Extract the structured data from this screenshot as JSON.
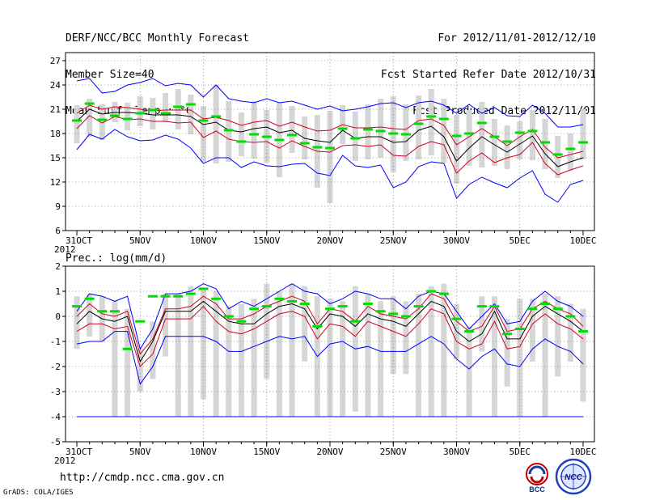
{
  "header": {
    "left_lines": [
      "DERF/NCC/BCC Monthly Forecast",
      "Member Size=40",
      "Mean Surf. Temp.: °C"
    ],
    "right_lines": [
      "For 2012/11/01-2012/12/10",
      "Fcst Started Refer Date 2012/10/31",
      "Fcst Produced Date 2012/11/01"
    ]
  },
  "footer": {
    "url": "http://cmdp.ncc.cma.gov.cn",
    "grads": "GrADS: COLA/IGES",
    "logo_left_label": "BCC",
    "logo_right_label": "NCC"
  },
  "colors": {
    "envelope": "#0000ff",
    "spread": "#d00020",
    "mean": "#000000",
    "observed": "#00dd00",
    "box": "#d6d6d6",
    "grid": "#808080"
  },
  "chart_data": [
    {
      "type": "line",
      "title": "",
      "ylabel": "",
      "ylim": [
        6,
        28
      ],
      "yticks": [
        6,
        9,
        12,
        15,
        18,
        21,
        24,
        27
      ],
      "day_count": 41,
      "xtick_days": [
        0,
        5,
        10,
        15,
        20,
        25,
        30,
        35,
        40
      ],
      "xtick_labels": [
        "31OCT",
        "5NOV",
        "10NOV",
        "15NOV",
        "20NOV",
        "25NOV",
        "30NOV",
        "5DEC",
        "10DEC"
      ],
      "xyear": "2012",
      "series": [
        {
          "name": "max",
          "values": [
            24.5,
            24.8,
            23.0,
            23.2,
            24.0,
            24.3,
            24.8,
            23.9,
            24.2,
            24.0,
            22.5,
            24.0,
            22.3,
            22.0,
            21.8,
            22.3,
            21.8,
            22.0,
            21.5,
            21.0,
            21.4,
            20.8,
            21.0,
            21.3,
            21.7,
            21.8,
            21.2,
            21.8,
            22.0,
            21.5,
            20.5,
            21.6,
            20.5,
            21.2,
            20.2,
            20.1,
            21.5,
            20.5,
            18.8,
            18.8,
            19.1
          ]
        },
        {
          "name": "upper",
          "values": [
            20.5,
            21.5,
            21.0,
            21.3,
            21.2,
            21.0,
            20.8,
            20.9,
            20.9,
            20.9,
            19.8,
            20.0,
            19.6,
            19.0,
            19.4,
            19.6,
            18.9,
            19.4,
            18.8,
            18.3,
            18.4,
            19.1,
            18.7,
            18.7,
            18.8,
            18.6,
            18.5,
            19.6,
            19.8,
            19.0,
            16.6,
            17.6,
            18.6,
            17.6,
            16.5,
            17.6,
            18.5,
            16.3,
            15.0,
            15.4,
            15.8
          ]
        },
        {
          "name": "mean",
          "values": [
            19.5,
            21.0,
            20.4,
            20.6,
            20.6,
            20.5,
            20.3,
            20.3,
            20.3,
            20.1,
            19.1,
            19.4,
            18.4,
            18.2,
            18.6,
            18.8,
            18.1,
            18.4,
            17.4,
            17.1,
            16.9,
            18.4,
            17.4,
            17.6,
            17.6,
            16.9,
            17.0,
            18.4,
            18.9,
            17.6,
            14.6,
            16.2,
            17.6,
            16.6,
            15.7,
            16.7,
            17.7,
            15.5,
            13.9,
            14.5,
            15.0
          ]
        },
        {
          "name": "lower",
          "values": [
            18.6,
            20.2,
            19.3,
            20.1,
            19.7,
            19.8,
            19.5,
            19.5,
            19.3,
            19.4,
            17.5,
            18.3,
            17.3,
            17.0,
            16.9,
            17.0,
            16.2,
            17.1,
            16.4,
            15.8,
            15.7,
            16.5,
            16.6,
            16.4,
            16.6,
            15.3,
            15.2,
            16.4,
            17.0,
            16.6,
            13.1,
            14.6,
            15.6,
            14.4,
            15.0,
            15.4,
            16.9,
            14.3,
            12.9,
            13.5,
            14.0
          ]
        },
        {
          "name": "min",
          "values": [
            16.0,
            17.9,
            17.3,
            18.5,
            17.6,
            17.1,
            17.2,
            17.8,
            17.3,
            16.2,
            14.3,
            15.0,
            15.0,
            13.8,
            14.5,
            14.0,
            13.9,
            14.2,
            14.3,
            13.1,
            12.8,
            15.3,
            14.0,
            13.8,
            14.1,
            11.3,
            12.0,
            13.9,
            14.5,
            14.3,
            10.0,
            11.7,
            12.6,
            11.9,
            11.3,
            12.5,
            13.4,
            10.5,
            9.5,
            11.7,
            12.2
          ]
        },
        {
          "name": "box_top",
          "values": [
            21.5,
            22.3,
            21.6,
            21.9,
            21.8,
            22.6,
            22.4,
            23.0,
            23.5,
            22.8,
            21.4,
            24.0,
            22.0,
            20.6,
            22.0,
            20.9,
            21.8,
            21.4,
            20.1,
            20.3,
            20.8,
            21.5,
            20.7,
            21.6,
            22.3,
            22.6,
            21.6,
            22.7,
            23.5,
            22.3,
            20.3,
            20.9,
            21.9,
            19.8,
            19.0,
            19.5,
            20.9,
            19.8,
            17.7,
            18.0,
            21.0
          ]
        },
        {
          "name": "box_bottom",
          "values": [
            16.8,
            17.6,
            17.2,
            19.4,
            18.4,
            18.9,
            18.5,
            19.4,
            18.5,
            17.9,
            14.5,
            14.3,
            14.5,
            15.2,
            14.9,
            14.4,
            12.6,
            15.6,
            14.8,
            11.3,
            9.4,
            16.7,
            14.6,
            14.8,
            15.0,
            13.2,
            14.6,
            14.8,
            15.3,
            14.4,
            11.8,
            14.0,
            13.8,
            14.0,
            13.6,
            14.8,
            14.7,
            13.6,
            12.5,
            13.4,
            14.8
          ]
        },
        {
          "name": "observed",
          "values": [
            19.6,
            21.7,
            19.7,
            20.2,
            19.8,
            20.5,
            20.9,
            20.5,
            21.3,
            21.6,
            19.6,
            20.1,
            18.4,
            17.0,
            17.9,
            17.6,
            17.2,
            17.8,
            16.8,
            16.3,
            16.2,
            18.6,
            17.4,
            18.5,
            18.3,
            18.0,
            17.9,
            19.2,
            20.1,
            19.8,
            17.7,
            18.0,
            19.3,
            17.6,
            17.0,
            18.1,
            18.3,
            16.9,
            15.4,
            16.1,
            16.9
          ]
        }
      ]
    },
    {
      "type": "line",
      "title": "Prec.: log(mm/d)",
      "ylabel": "",
      "ylim": [
        -5,
        2
      ],
      "yticks": [
        -5,
        -4,
        -3,
        -2,
        -1,
        0,
        1,
        2
      ],
      "day_count": 41,
      "xtick_days": [
        0,
        5,
        10,
        15,
        20,
        25,
        30,
        35,
        40
      ],
      "xtick_labels": [
        "31OCT",
        "5NOV",
        "10NOV",
        "15NOV",
        "20NOV",
        "25NOV",
        "30NOV",
        "5DEC",
        "10DEC"
      ],
      "xyear": "2012",
      "floor_value": -4,
      "series": [
        {
          "name": "max",
          "values": [
            0.2,
            0.9,
            0.8,
            0.6,
            0.8,
            -1.3,
            -0.5,
            0.9,
            0.9,
            1.0,
            1.3,
            1.1,
            0.3,
            0.6,
            0.4,
            0.7,
            1.0,
            1.3,
            1.0,
            0.9,
            0.5,
            0.7,
            1.0,
            0.9,
            0.7,
            0.7,
            0.3,
            0.8,
            1.0,
            0.9,
            0.2,
            -0.5,
            0.0,
            0.5,
            -0.3,
            -0.2,
            0.6,
            1.0,
            0.6,
            0.4,
            0.0
          ]
        },
        {
          "name": "upper",
          "values": [
            0.0,
            0.5,
            0.1,
            0.0,
            0.2,
            -1.5,
            -0.9,
            0.3,
            0.3,
            0.4,
            0.8,
            0.5,
            -0.1,
            -0.1,
            0.1,
            0.4,
            0.6,
            0.8,
            0.6,
            -0.3,
            0.3,
            0.2,
            -0.2,
            0.4,
            0.1,
            0.0,
            -0.1,
            0.3,
            0.9,
            0.7,
            -0.2,
            -0.6,
            -0.4,
            0.4,
            -0.6,
            -0.5,
            0.3,
            0.6,
            0.3,
            0.1,
            -0.4
          ]
        },
        {
          "name": "mean",
          "values": [
            -0.3,
            0.2,
            -0.1,
            -0.2,
            0.0,
            -1.8,
            -1.0,
            0.2,
            0.2,
            0.2,
            0.6,
            0.2,
            -0.2,
            -0.3,
            -0.3,
            0.1,
            0.4,
            0.5,
            0.3,
            -0.5,
            0.1,
            0.0,
            -0.4,
            0.1,
            -0.1,
            -0.2,
            -0.4,
            0.1,
            0.6,
            0.4,
            -0.6,
            -1.0,
            -0.7,
            0.2,
            -0.9,
            -0.9,
            0.0,
            0.4,
            0.1,
            -0.2,
            -0.6
          ]
        },
        {
          "name": "lower",
          "values": [
            -0.6,
            -0.3,
            -0.3,
            -0.5,
            -0.4,
            -2.0,
            -1.5,
            -0.1,
            -0.1,
            -0.1,
            0.4,
            -0.2,
            -0.6,
            -0.7,
            -0.5,
            -0.2,
            0.1,
            0.2,
            0.0,
            -0.9,
            -0.3,
            -0.4,
            -0.8,
            -0.2,
            -0.4,
            -0.6,
            -0.8,
            -0.3,
            0.3,
            0.1,
            -1.0,
            -1.3,
            -1.1,
            -0.2,
            -1.3,
            -1.2,
            -0.3,
            0.1,
            -0.3,
            -0.5,
            -0.9
          ]
        },
        {
          "name": "min",
          "values": [
            -1.1,
            -1.0,
            -1.0,
            -0.6,
            -0.6,
            -2.7,
            -2.0,
            -0.8,
            -0.8,
            -0.8,
            -0.8,
            -1.0,
            -1.4,
            -1.4,
            -1.2,
            -1.0,
            -0.8,
            -0.9,
            -0.8,
            -1.6,
            -1.1,
            -1.0,
            -1.3,
            -1.2,
            -1.4,
            -1.4,
            -1.4,
            -1.1,
            -0.8,
            -1.1,
            -1.7,
            -2.1,
            -1.6,
            -1.3,
            -1.9,
            -2.0,
            -1.3,
            -0.9,
            -1.2,
            -1.4,
            -1.9
          ]
        },
        {
          "name": "box_top",
          "values": [
            0.8,
            0.9,
            0.8,
            0.6,
            0.3,
            -1.3,
            -0.2,
            0.9,
            0.9,
            1.2,
            1.1,
            1.0,
            0.4,
            0.5,
            0.7,
            1.3,
            1.0,
            1.3,
            1.2,
            0.8,
            0.7,
            0.6,
            1.2,
            0.9,
            0.6,
            0.8,
            0.6,
            0.9,
            1.2,
            1.3,
            0.5,
            -0.4,
            0.8,
            0.8,
            -0.1,
            0.7,
            0.7,
            0.9,
            0.8,
            0.5,
            0.3
          ]
        },
        {
          "name": "box_bottom",
          "values": [
            -1.3,
            -0.8,
            -1.0,
            -4.0,
            -4.0,
            -3.0,
            -2.5,
            -1.6,
            -4.0,
            -4.0,
            -3.3,
            -4.0,
            -4.0,
            -4.0,
            -4.0,
            -2.5,
            -4.0,
            -4.0,
            -1.8,
            -4.0,
            -4.0,
            -4.0,
            -3.8,
            -4.0,
            -4.0,
            -2.3,
            -2.3,
            -4.0,
            -4.0,
            -4.0,
            -1.7,
            -4.0,
            -1.4,
            -4.0,
            -2.8,
            -4.0,
            -1.8,
            -4.0,
            -2.4,
            -1.8,
            -3.4
          ]
        },
        {
          "name": "observed",
          "values": [
            0.4,
            0.7,
            0.2,
            0.2,
            -1.3,
            -0.2,
            0.8,
            0.8,
            0.8,
            0.9,
            1.1,
            0.7,
            0.0,
            -0.2,
            0.3,
            0.4,
            0.7,
            0.6,
            0.5,
            -0.4,
            0.3,
            0.4,
            -0.2,
            0.5,
            0.2,
            0.1,
            0.0,
            0.4,
            1.0,
            0.9,
            -0.1,
            -0.6,
            0.4,
            0.4,
            -0.7,
            -0.5,
            0.3,
            0.5,
            0.3,
            0.0,
            -0.6
          ]
        }
      ]
    }
  ]
}
